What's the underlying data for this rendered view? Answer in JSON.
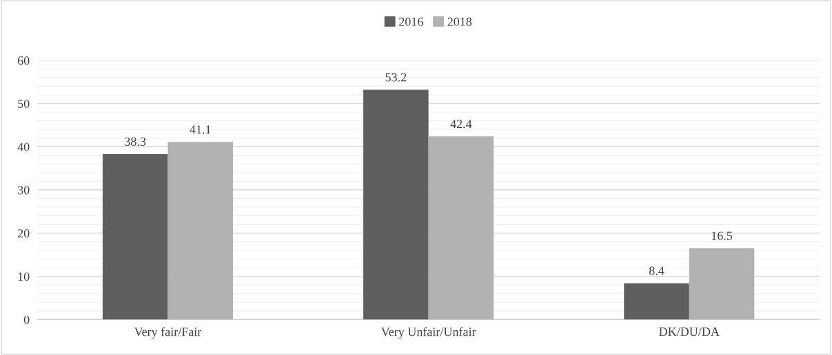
{
  "chart_data": {
    "type": "bar",
    "categories": [
      "Very fair/Fair",
      "Very Unfair/Unfair",
      "DK/DU/DA"
    ],
    "series": [
      {
        "name": "2016",
        "color": "#5f5f5f",
        "values": [
          38.3,
          53.2,
          8.4
        ]
      },
      {
        "name": "2018",
        "color": "#b2b2b2",
        "values": [
          41.1,
          42.4,
          16.5
        ]
      }
    ],
    "ylim": [
      0,
      60
    ],
    "yticks": [
      0,
      10,
      20,
      30,
      40,
      50,
      60
    ],
    "grid": "y",
    "legend": "top",
    "data_labels": true
  }
}
